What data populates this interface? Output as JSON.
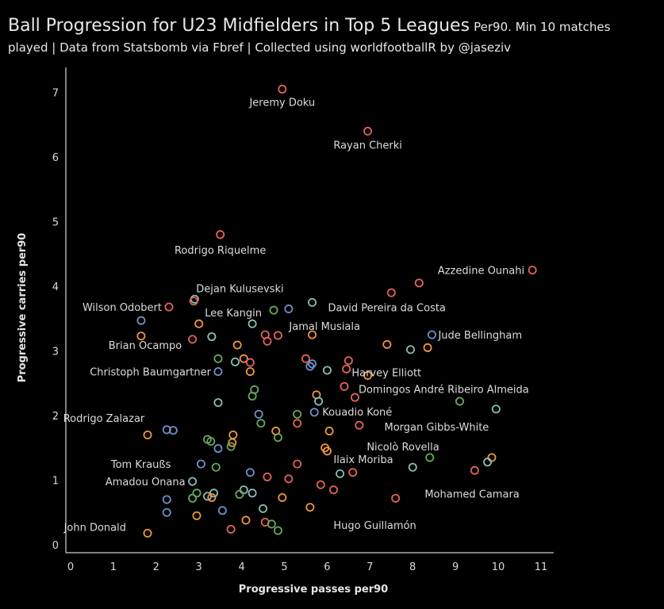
{
  "header": {
    "title": "Ball Progression for U23 Midfielders in Top 5 Leagues",
    "subtitle_part1": "Per90. Min 10 matches",
    "subtitle_part2": "played | Data from Statsbomb via Fbref | Collected using worldfootballR by @jaseziv"
  },
  "colors": {
    "background": "#000000",
    "red": "#e3625a",
    "orange": "#f0953d",
    "blue": "#6f8fc6",
    "teal": "#86bfb7",
    "green": "#66a85a",
    "axis": "#ffffff"
  },
  "chart_data": {
    "type": "scatter",
    "xlabel": "Progressive passes per90",
    "ylabel": "Progressive carries per90",
    "xlim": [
      0,
      11.3
    ],
    "ylim": [
      -0.1,
      7.5
    ],
    "xticks": [
      "0",
      "1",
      "2",
      "3",
      "4",
      "5",
      "6",
      "7",
      "8",
      "9",
      "10",
      "11"
    ],
    "yticks": [
      "0",
      "1",
      "2",
      "3",
      "4",
      "5",
      "6",
      "7"
    ],
    "grid": false,
    "points": [
      {
        "x": 4.95,
        "y": 7.05,
        "c": "red",
        "label": "Jeremy Doku"
      },
      {
        "x": 6.95,
        "y": 6.4,
        "c": "red",
        "label": "Rayan Cherki"
      },
      {
        "x": 3.5,
        "y": 4.8,
        "c": "red",
        "label": "Rodrigo Riquelme"
      },
      {
        "x": 10.8,
        "y": 4.25,
        "c": "red",
        "label": "Azzedine Ounahi"
      },
      {
        "x": 8.15,
        "y": 4.05,
        "c": "red"
      },
      {
        "x": 7.5,
        "y": 3.9,
        "c": "red"
      },
      {
        "x": 2.9,
        "y": 3.8,
        "c": "teal",
        "label": "Dejan Kulusevski"
      },
      {
        "x": 2.88,
        "y": 3.77,
        "c": "red"
      },
      {
        "x": 2.3,
        "y": 3.68,
        "c": "red",
        "label": "Wilson Odobert"
      },
      {
        "x": 5.65,
        "y": 3.75,
        "c": "teal",
        "label": "David Pereira da Costa"
      },
      {
        "x": 5.1,
        "y": 3.65,
        "c": "blue"
      },
      {
        "x": 4.75,
        "y": 3.63,
        "c": "green",
        "label": "Lee Kangin"
      },
      {
        "x": 1.65,
        "y": 3.47,
        "c": "blue"
      },
      {
        "x": 3.0,
        "y": 3.42,
        "c": "orange"
      },
      {
        "x": 4.25,
        "y": 3.42,
        "c": "teal"
      },
      {
        "x": 1.65,
        "y": 3.23,
        "c": "orange"
      },
      {
        "x": 2.85,
        "y": 3.18,
        "c": "red"
      },
      {
        "x": 3.3,
        "y": 3.22,
        "c": "teal"
      },
      {
        "x": 4.55,
        "y": 3.25,
        "c": "red"
      },
      {
        "x": 4.6,
        "y": 3.15,
        "c": "red"
      },
      {
        "x": 4.85,
        "y": 3.24,
        "c": "red",
        "label": "Jamal Musiala"
      },
      {
        "x": 5.65,
        "y": 3.25,
        "c": "orange"
      },
      {
        "x": 8.45,
        "y": 3.25,
        "c": "blue",
        "label": "Jude Bellingham"
      },
      {
        "x": 3.9,
        "y": 3.09,
        "c": "orange",
        "label": "Brian Ocampo"
      },
      {
        "x": 7.4,
        "y": 3.1,
        "c": "orange"
      },
      {
        "x": 7.95,
        "y": 3.02,
        "c": "teal"
      },
      {
        "x": 8.35,
        "y": 3.05,
        "c": "orange"
      },
      {
        "x": 3.45,
        "y": 2.88,
        "c": "green"
      },
      {
        "x": 3.85,
        "y": 2.83,
        "c": "teal"
      },
      {
        "x": 4.05,
        "y": 2.88,
        "c": "orange"
      },
      {
        "x": 4.2,
        "y": 2.82,
        "c": "red"
      },
      {
        "x": 5.5,
        "y": 2.88,
        "c": "red"
      },
      {
        "x": 5.6,
        "y": 2.76,
        "c": "blue"
      },
      {
        "x": 5.65,
        "y": 2.8,
        "c": "blue"
      },
      {
        "x": 6.5,
        "y": 2.85,
        "c": "red",
        "label": "Harvey Elliott"
      },
      {
        "x": 3.45,
        "y": 2.68,
        "c": "blue",
        "label": "Christoph Baumgartner"
      },
      {
        "x": 4.2,
        "y": 2.68,
        "c": "orange"
      },
      {
        "x": 6.0,
        "y": 2.7,
        "c": "teal"
      },
      {
        "x": 6.45,
        "y": 2.72,
        "c": "red"
      },
      {
        "x": 6.95,
        "y": 2.62,
        "c": "orange"
      },
      {
        "x": 4.3,
        "y": 2.4,
        "c": "green"
      },
      {
        "x": 4.25,
        "y": 2.3,
        "c": "green"
      },
      {
        "x": 6.4,
        "y": 2.45,
        "c": "red",
        "label": "Domingos André Ribeiro Almeida"
      },
      {
        "x": 6.65,
        "y": 2.28,
        "c": "red"
      },
      {
        "x": 5.75,
        "y": 2.32,
        "c": "orange"
      },
      {
        "x": 5.8,
        "y": 2.22,
        "c": "teal"
      },
      {
        "x": 3.45,
        "y": 2.2,
        "c": "teal"
      },
      {
        "x": 9.1,
        "y": 2.22,
        "c": "green"
      },
      {
        "x": 9.95,
        "y": 2.1,
        "c": "teal",
        "label": "Morgan Gibbs-White"
      },
      {
        "x": 4.4,
        "y": 2.02,
        "c": "blue"
      },
      {
        "x": 5.3,
        "y": 2.02,
        "c": "green"
      },
      {
        "x": 5.7,
        "y": 2.05,
        "c": "blue",
        "label": "Kouadio Koné"
      },
      {
        "x": 4.45,
        "y": 1.88,
        "c": "green"
      },
      {
        "x": 5.3,
        "y": 1.88,
        "c": "red"
      },
      {
        "x": 6.75,
        "y": 1.85,
        "c": "red"
      },
      {
        "x": 2.25,
        "y": 1.78,
        "c": "blue",
        "label": "Rodrigo Zalazar"
      },
      {
        "x": 2.4,
        "y": 1.77,
        "c": "blue"
      },
      {
        "x": 4.8,
        "y": 1.76,
        "c": "orange"
      },
      {
        "x": 6.05,
        "y": 1.76,
        "c": "orange"
      },
      {
        "x": 1.8,
        "y": 1.7,
        "c": "orange"
      },
      {
        "x": 3.8,
        "y": 1.7,
        "c": "orange"
      },
      {
        "x": 4.85,
        "y": 1.66,
        "c": "green"
      },
      {
        "x": 3.2,
        "y": 1.63,
        "c": "green"
      },
      {
        "x": 3.28,
        "y": 1.6,
        "c": "green"
      },
      {
        "x": 3.78,
        "y": 1.58,
        "c": "orange"
      },
      {
        "x": 3.75,
        "y": 1.52,
        "c": "green"
      },
      {
        "x": 3.45,
        "y": 1.49,
        "c": "blue"
      },
      {
        "x": 5.95,
        "y": 1.5,
        "c": "orange"
      },
      {
        "x": 6.0,
        "y": 1.45,
        "c": "orange",
        "label": "Ilaix Moriba"
      },
      {
        "x": 8.4,
        "y": 1.35,
        "c": "green",
        "label": "Nicolò Rovella"
      },
      {
        "x": 9.85,
        "y": 1.35,
        "c": "orange"
      },
      {
        "x": 9.75,
        "y": 1.28,
        "c": "teal"
      },
      {
        "x": 3.05,
        "y": 1.25,
        "c": "blue",
        "label": "Tom Kraußs"
      },
      {
        "x": 3.4,
        "y": 1.2,
        "c": "green"
      },
      {
        "x": 5.3,
        "y": 1.25,
        "c": "red"
      },
      {
        "x": 8.0,
        "y": 1.2,
        "c": "teal"
      },
      {
        "x": 9.45,
        "y": 1.15,
        "c": "red",
        "label": "Mohamed Camara"
      },
      {
        "x": 4.2,
        "y": 1.12,
        "c": "blue"
      },
      {
        "x": 6.6,
        "y": 1.12,
        "c": "red"
      },
      {
        "x": 6.3,
        "y": 1.1,
        "c": "teal"
      },
      {
        "x": 4.6,
        "y": 1.05,
        "c": "red"
      },
      {
        "x": 5.1,
        "y": 1.02,
        "c": "red"
      },
      {
        "x": 2.85,
        "y": 0.98,
        "c": "teal",
        "label": "Amadou Onana"
      },
      {
        "x": 5.85,
        "y": 0.93,
        "c": "red"
      },
      {
        "x": 6.15,
        "y": 0.85,
        "c": "red"
      },
      {
        "x": 2.85,
        "y": 0.72,
        "c": "green"
      },
      {
        "x": 2.95,
        "y": 0.8,
        "c": "green"
      },
      {
        "x": 3.2,
        "y": 0.75,
        "c": "teal"
      },
      {
        "x": 3.35,
        "y": 0.8,
        "c": "teal"
      },
      {
        "x": 3.3,
        "y": 0.73,
        "c": "orange"
      },
      {
        "x": 4.05,
        "y": 0.85,
        "c": "teal"
      },
      {
        "x": 3.95,
        "y": 0.78,
        "c": "green"
      },
      {
        "x": 4.25,
        "y": 0.8,
        "c": "teal"
      },
      {
        "x": 4.95,
        "y": 0.73,
        "c": "orange"
      },
      {
        "x": 7.6,
        "y": 0.72,
        "c": "red"
      },
      {
        "x": 2.25,
        "y": 0.7,
        "c": "blue"
      },
      {
        "x": 4.5,
        "y": 0.56,
        "c": "teal"
      },
      {
        "x": 5.6,
        "y": 0.58,
        "c": "orange"
      },
      {
        "x": 3.55,
        "y": 0.53,
        "c": "blue"
      },
      {
        "x": 2.25,
        "y": 0.5,
        "c": "blue"
      },
      {
        "x": 2.95,
        "y": 0.45,
        "c": "orange",
        "label": "John Donald"
      },
      {
        "x": 4.1,
        "y": 0.38,
        "c": "orange"
      },
      {
        "x": 4.55,
        "y": 0.35,
        "c": "red"
      },
      {
        "x": 4.7,
        "y": 0.32,
        "c": "green"
      },
      {
        "x": 4.85,
        "y": 0.22,
        "c": "green",
        "label": "Hugo Guillamón"
      },
      {
        "x": 3.75,
        "y": 0.24,
        "c": "red"
      },
      {
        "x": 1.8,
        "y": 0.18,
        "c": "orange"
      }
    ]
  }
}
